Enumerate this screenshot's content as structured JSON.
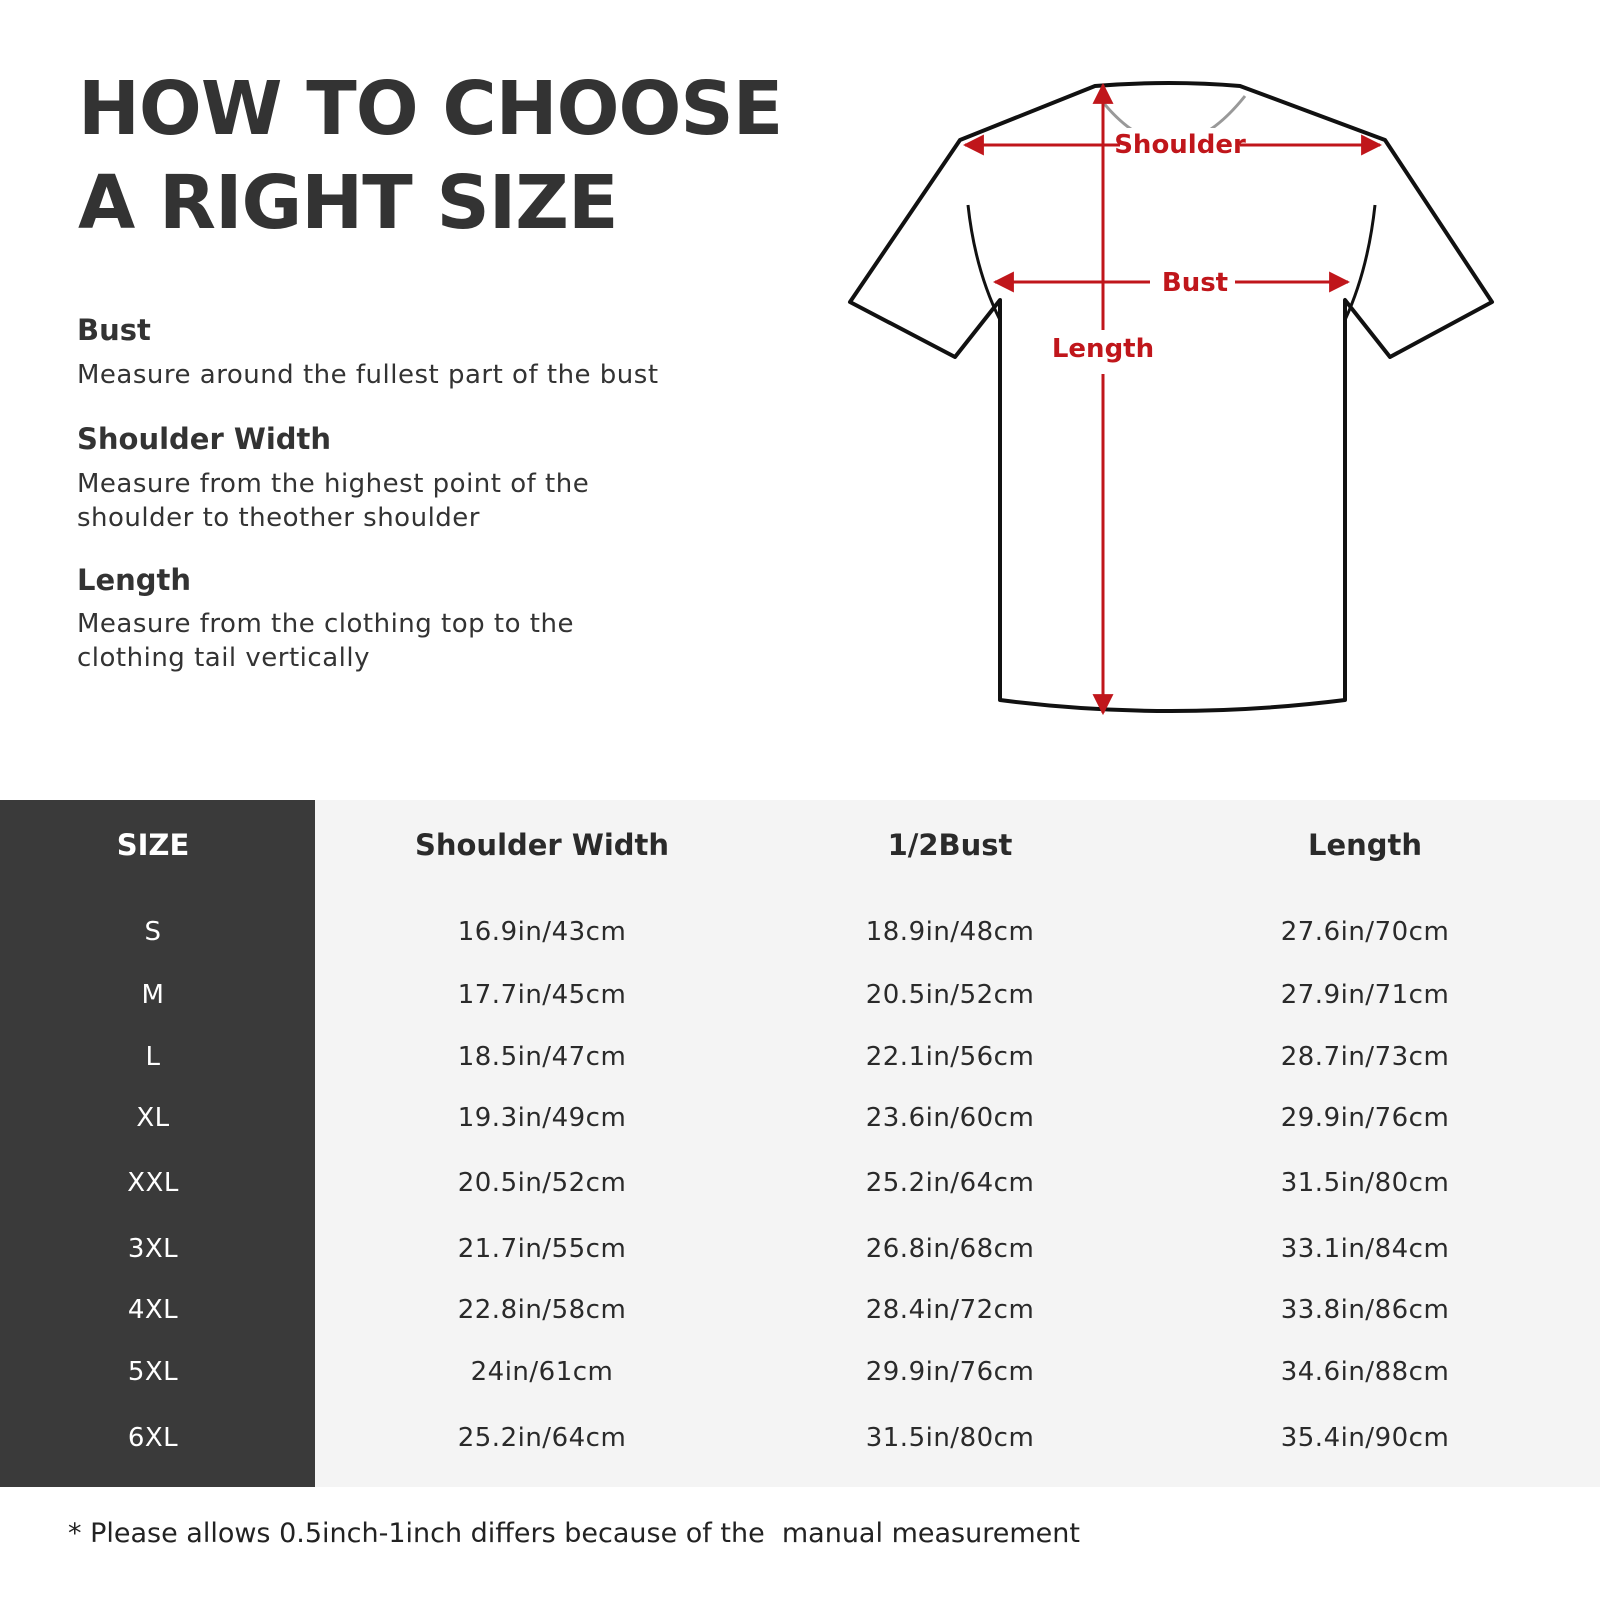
{
  "header": {
    "title": [
      "HOW TO CHOOSE",
      "A RIGHT SIZE"
    ]
  },
  "guide": [
    {
      "term": "Bust",
      "description": [
        "Measure around the fullest part of the bust"
      ]
    },
    {
      "term": "Shoulder Width",
      "description": [
        "Measure from the highest point of the",
        "shoulder to theother shoulder"
      ]
    },
    {
      "term": "Length",
      "description": [
        "Measure from the clothing top to the",
        "clothing tail vertically"
      ]
    }
  ],
  "diagram": {
    "labels": {
      "shoulder": "Shoulder",
      "bust": "Bust",
      "length": "Length"
    }
  },
  "table": {
    "headers": [
      "SIZE",
      "Shoulder Width",
      "1/2Bust",
      "Length"
    ],
    "rows": [
      [
        "S",
        "16.9in/43cm",
        "18.9in/48cm",
        "27.6in/70cm"
      ],
      [
        "M",
        "17.7in/45cm",
        "20.5in/52cm",
        "27.9in/71cm"
      ],
      [
        "L",
        "18.5in/47cm",
        "22.1in/56cm",
        "28.7in/73cm"
      ],
      [
        "XL",
        "19.3in/49cm",
        "23.6in/60cm",
        "29.9in/76cm"
      ],
      [
        "XXL",
        "20.5in/52cm",
        "25.2in/64cm",
        "31.5in/80cm"
      ],
      [
        "3XL",
        "21.7in/55cm",
        "26.8in/68cm",
        "33.1in/84cm"
      ],
      [
        "4XL",
        "22.8in/58cm",
        "28.4in/72cm",
        "33.8in/86cm"
      ],
      [
        "5XL",
        "24in/61cm",
        "29.9in/76cm",
        "34.6in/88cm"
      ],
      [
        "6XL",
        "25.2in/64cm",
        "31.5in/80cm",
        "35.4in/90cm"
      ]
    ]
  },
  "footnote": "* Please allows 0.5inch-1inch differs because of the  manual measurement"
}
